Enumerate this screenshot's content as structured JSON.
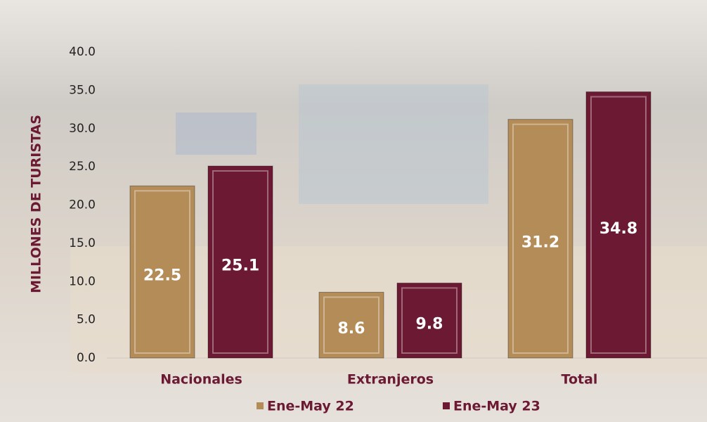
{
  "chart_data": {
    "type": "bar",
    "y_label": "MILLONES DE TURISTAS",
    "categories": [
      "Nacionales",
      "Extranjeros",
      "Total"
    ],
    "series": [
      {
        "name": "Ene-May 22",
        "color": "#b48c58",
        "values": [
          22.5,
          8.6,
          31.2
        ]
      },
      {
        "name": "Ene-May 23",
        "color": "#6c1934",
        "values": [
          25.1,
          9.8,
          34.8
        ]
      }
    ],
    "ylim": [
      0,
      40
    ],
    "yticks": [
      {
        "value": 0,
        "label": "0.0"
      },
      {
        "value": 5,
        "label": "5.0"
      },
      {
        "value": 10,
        "label": "10.0"
      },
      {
        "value": 15,
        "label": "15.0"
      },
      {
        "value": 20,
        "label": "20.0"
      },
      {
        "value": 25,
        "label": "25.0"
      },
      {
        "value": 30,
        "label": "30.0"
      },
      {
        "value": 35,
        "label": "35.0"
      },
      {
        "value": 40,
        "label": "40.0"
      }
    ],
    "legend": "bottom"
  }
}
